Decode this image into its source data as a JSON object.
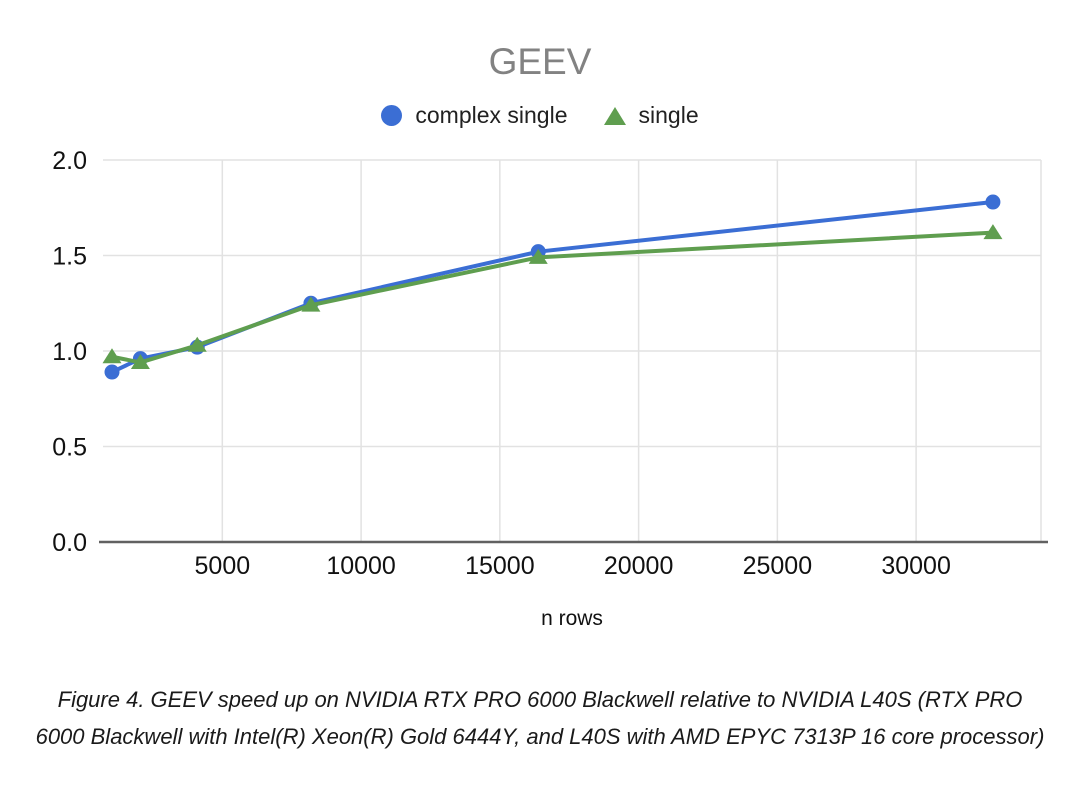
{
  "figure": {
    "caption": "Figure 4. GEEV speed up on NVIDIA RTX PRO 6000 Blackwell relative to NVIDIA L40S (RTX PRO 6000 Blackwell with Intel(R) Xeon(R) Gold 6444Y, and L40S with AMD EPYC 7313P 16 core processor)"
  },
  "chart_data": {
    "type": "line",
    "title": "GEEV",
    "xlabel": "n rows",
    "ylabel": "",
    "x": [
      1024,
      2048,
      4096,
      8192,
      16384,
      32768
    ],
    "series": [
      {
        "name": "complex single",
        "marker": "circle",
        "color": "#3B6ED4",
        "values": [
          0.89,
          0.96,
          1.02,
          1.25,
          1.52,
          1.78
        ]
      },
      {
        "name": "single",
        "marker": "triangle",
        "color": "#5F9E4F",
        "values": [
          0.97,
          0.94,
          1.03,
          1.24,
          1.49,
          1.62
        ]
      }
    ],
    "xlim": [
      700,
      34500
    ],
    "ylim": [
      0,
      2
    ],
    "xticks": {
      "values": [
        5000,
        10000,
        15000,
        20000,
        25000,
        30000
      ],
      "labels": [
        "5000",
        "10000",
        "15000",
        "20000",
        "25000",
        "30000"
      ]
    },
    "yticks": {
      "values": [
        0,
        0.5,
        1,
        1.5,
        2
      ],
      "labels": [
        "0.0",
        "0.5",
        "1.0",
        "1.5",
        "2.0"
      ]
    },
    "grid": true,
    "legend_position": "top",
    "colors": {
      "gridline": "#E2E2E2",
      "axis_line": "#616161",
      "tick_label": "#111111",
      "title": "#828282",
      "legend_text": "#212121",
      "caption_text": "#1A1A1A",
      "background": "#FFFFFF"
    }
  }
}
